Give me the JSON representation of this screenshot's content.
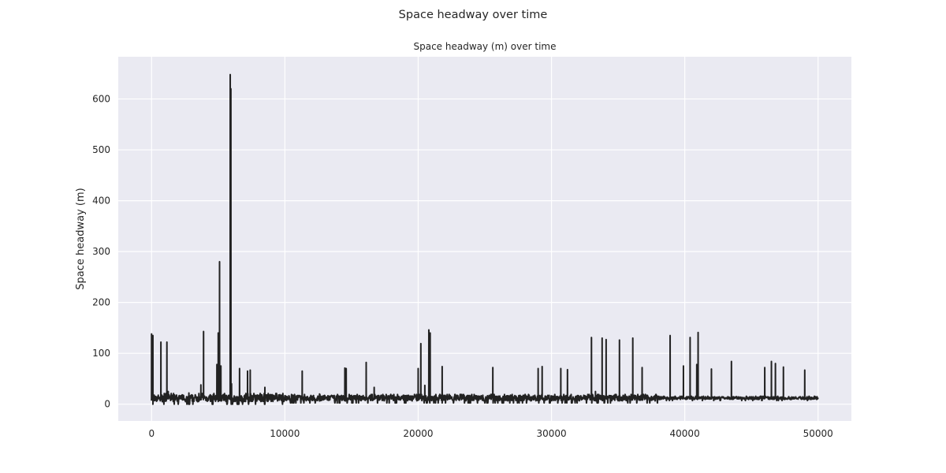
{
  "chart_data": {
    "type": "line",
    "suptitle": "Space headway over time",
    "title": "Space headway (m) over time",
    "xlabel": "",
    "ylabel": "Space headway (m)",
    "xlim": [
      -2500,
      52500
    ],
    "ylim": [
      -33,
      683
    ],
    "xticks": [
      0,
      10000,
      20000,
      30000,
      40000,
      50000
    ],
    "xtick_labels": [
      "0",
      "10000",
      "20000",
      "30000",
      "40000",
      "50000"
    ],
    "yticks": [
      0,
      100,
      200,
      300,
      400,
      500,
      600
    ],
    "ytick_labels": [
      "0",
      "100",
      "200",
      "300",
      "400",
      "500",
      "600"
    ],
    "grid": true,
    "style": "seaborn-darkgrid",
    "colors": {
      "line": "#222222",
      "axes_bg": "#eaeaf2",
      "grid": "#ffffff"
    },
    "series": [
      {
        "name": "",
        "x_range": [
          0,
          50000
        ],
        "baseline": 12,
        "noise_segments": [
          [
            0,
            10000,
            10
          ],
          [
            10000,
            38000,
            8
          ],
          [
            38000,
            50000,
            4
          ]
        ],
        "spikes": [
          [
            0,
            138
          ],
          [
            100,
            135
          ],
          [
            700,
            122
          ],
          [
            1150,
            122
          ],
          [
            1250,
            25
          ],
          [
            2800,
            22
          ],
          [
            3700,
            38
          ],
          [
            3900,
            143
          ],
          [
            4900,
            78
          ],
          [
            5000,
            140
          ],
          [
            5100,
            280
          ],
          [
            5200,
            75
          ],
          [
            5900,
            648
          ],
          [
            5950,
            620
          ],
          [
            6000,
            40
          ],
          [
            6600,
            70
          ],
          [
            7200,
            65
          ],
          [
            7400,
            67
          ],
          [
            8500,
            33
          ],
          [
            11300,
            65
          ],
          [
            12600,
            20
          ],
          [
            14500,
            71
          ],
          [
            14600,
            70
          ],
          [
            16100,
            82
          ],
          [
            16700,
            33
          ],
          [
            20000,
            70
          ],
          [
            20200,
            119
          ],
          [
            20500,
            37
          ],
          [
            20800,
            146
          ],
          [
            20900,
            140
          ],
          [
            21800,
            74
          ],
          [
            25600,
            72
          ],
          [
            29000,
            70
          ],
          [
            29300,
            74
          ],
          [
            30700,
            70
          ],
          [
            31200,
            68
          ],
          [
            33000,
            131
          ],
          [
            33300,
            25
          ],
          [
            33800,
            130
          ],
          [
            34100,
            127
          ],
          [
            35100,
            126
          ],
          [
            36100,
            130
          ],
          [
            36800,
            72
          ],
          [
            38900,
            135
          ],
          [
            39900,
            75
          ],
          [
            40400,
            131
          ],
          [
            40900,
            78
          ],
          [
            41000,
            141
          ],
          [
            42000,
            69
          ],
          [
            43500,
            84
          ],
          [
            46000,
            72
          ],
          [
            46500,
            84
          ],
          [
            46800,
            80
          ],
          [
            47400,
            73
          ],
          [
            49000,
            67
          ]
        ]
      }
    ]
  }
}
